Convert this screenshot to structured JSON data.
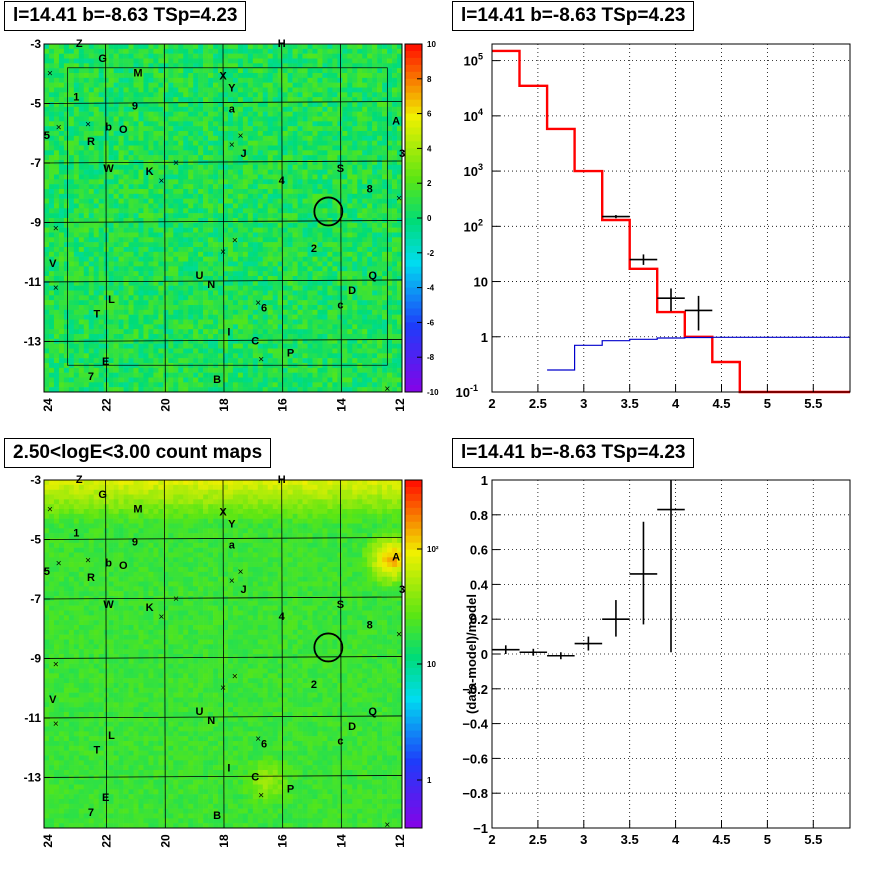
{
  "panels": {
    "map_top_title": "l=14.41 b=-8.63 TSp=4.23",
    "spectrum_title": "l=14.41 b=-8.63 TSp=4.23",
    "map_bottom_title": "2.50<logE<3.00 count maps",
    "residual_title": "l=14.41 b=-8.63 TSp=4.23"
  },
  "maps": {
    "x_ticks": [
      "24",
      "22",
      "20",
      "18",
      "16",
      "14",
      "12"
    ],
    "y_ticks": [
      "-3",
      "-5",
      "-7",
      "-9",
      "-11",
      "-13"
    ],
    "top_colorbar_ticks": [
      "10",
      "8",
      "6",
      "4",
      "2",
      "0",
      "-2",
      "-4",
      "-6",
      "-8",
      "-10"
    ],
    "bottom_colorbar_ticks": [
      "10²",
      "10",
      "1"
    ],
    "source_labels": [
      {
        "t": "Z",
        "l": 22.9,
        "b": -3.1
      },
      {
        "t": "H",
        "l": 16.0,
        "b": -3.1
      },
      {
        "t": "G",
        "l": 22.1,
        "b": -3.6
      },
      {
        "t": "M",
        "l": 20.9,
        "b": -4.1
      },
      {
        "t": "X",
        "l": 18.0,
        "b": -4.2
      },
      {
        "t": "Y",
        "l": 17.7,
        "b": -4.6
      },
      {
        "t": "1",
        "l": 23.0,
        "b": -4.9
      },
      {
        "t": "9",
        "l": 21.0,
        "b": -5.2
      },
      {
        "t": "a",
        "l": 17.7,
        "b": -5.3
      },
      {
        "t": "A",
        "l": 12.1,
        "b": -5.7
      },
      {
        "t": "b",
        "l": 21.9,
        "b": -5.9
      },
      {
        "t": "O",
        "l": 21.4,
        "b": -6.0
      },
      {
        "t": "5",
        "l": 24.0,
        "b": -6.2
      },
      {
        "t": "R",
        "l": 22.5,
        "b": -6.4
      },
      {
        "t": "J",
        "l": 17.3,
        "b": -6.8
      },
      {
        "t": "3",
        "l": 11.9,
        "b": -6.8
      },
      {
        "t": "W",
        "l": 21.9,
        "b": -7.3
      },
      {
        "t": "K",
        "l": 20.5,
        "b": -7.4
      },
      {
        "t": "S",
        "l": 14.0,
        "b": -7.3
      },
      {
        "t": "4",
        "l": 16.0,
        "b": -7.7
      },
      {
        "t": "8",
        "l": 13.0,
        "b": -8.0
      },
      {
        "t": "2",
        "l": 14.9,
        "b": -10.0
      },
      {
        "t": "V",
        "l": 23.8,
        "b": -10.5
      },
      {
        "t": "U",
        "l": 18.8,
        "b": -10.9
      },
      {
        "t": "Q",
        "l": 12.9,
        "b": -10.9
      },
      {
        "t": "N",
        "l": 18.4,
        "b": -11.2
      },
      {
        "t": "D",
        "l": 13.6,
        "b": -11.4
      },
      {
        "t": "L",
        "l": 21.8,
        "b": -11.7
      },
      {
        "t": "c",
        "l": 14.0,
        "b": -11.9
      },
      {
        "t": "6",
        "l": 16.6,
        "b": -12.0
      },
      {
        "t": "T",
        "l": 22.3,
        "b": -12.2
      },
      {
        "t": "I",
        "l": 17.8,
        "b": -12.8
      },
      {
        "t": "C",
        "l": 16.9,
        "b": -13.1
      },
      {
        "t": "P",
        "l": 15.7,
        "b": -13.5
      },
      {
        "t": "E",
        "l": 22.0,
        "b": -13.8
      },
      {
        "t": "7",
        "l": 22.5,
        "b": -14.3
      },
      {
        "t": "B",
        "l": 18.2,
        "b": -14.4
      }
    ]
  },
  "chart_data": [
    {
      "type": "heatmap",
      "title": "l=14.41 b=-8.63 TSp=4.23",
      "xlabel": "",
      "ylabel": "",
      "xlim": [
        24.1,
        11.9
      ],
      "ylim": [
        -14.7,
        -3.0
      ],
      "zlim": [
        -10,
        10
      ],
      "colorbar_ticks": [
        10,
        8,
        6,
        4,
        2,
        0,
        -2,
        -4,
        -6,
        -8,
        -10
      ],
      "marked_position": {
        "l": 14.41,
        "b": -8.63
      },
      "grid": true
    },
    {
      "type": "line",
      "title": "l=14.41 b=-8.63 TSp=4.23",
      "xlabel": "",
      "ylabel": "",
      "xlim": [
        2,
        5.9
      ],
      "ylim": [
        0.1,
        200000
      ],
      "yscale": "log",
      "grid": true,
      "x_ticks": [
        "2",
        "2.5",
        "3",
        "3.5",
        "4",
        "4.5",
        "5",
        "5.5"
      ],
      "y_ticks": [
        "10^{-1}",
        "1",
        "10",
        "10^{2}",
        "10^{3}",
        "10^{4}",
        "10^{5}"
      ],
      "series": [
        {
          "color": "#ff0000",
          "style": "step",
          "edges": [
            2.0,
            2.3,
            2.6,
            2.9,
            3.2,
            3.5,
            3.8,
            4.1,
            4.4,
            4.7,
            5.9
          ],
          "values": [
            150000,
            35000,
            5800,
            1000,
            130,
            17,
            2.8,
            1.0,
            0.35,
            0.1
          ]
        },
        {
          "color": "#0000cc",
          "style": "step",
          "edges": [
            2.6,
            2.9,
            3.2,
            3.5,
            3.8,
            4.1,
            4.4,
            4.7,
            5.0,
            5.9
          ],
          "values": [
            0.25,
            0.7,
            0.85,
            0.9,
            0.95,
            0.97,
            0.98,
            0.98,
            0.98
          ]
        },
        {
          "color": "#000000",
          "style": "points",
          "points": [
            {
              "x": 3.35,
              "y": 150,
              "xerr": 0.15,
              "ylo": 140,
              "yhi": 160
            },
            {
              "x": 3.65,
              "y": 25,
              "xerr": 0.15,
              "ylo": 20,
              "yhi": 31
            },
            {
              "x": 3.95,
              "y": 5,
              "xerr": 0.15,
              "ylo": 2.9,
              "yhi": 7.5
            },
            {
              "x": 4.25,
              "y": 3,
              "xerr": 0.15,
              "ylo": 1.3,
              "yhi": 5.5
            }
          ]
        }
      ]
    },
    {
      "type": "heatmap",
      "title": "2.50<logE<3.00 count maps",
      "xlabel": "",
      "ylabel": "",
      "xlim": [
        24.1,
        11.9
      ],
      "ylim": [
        -14.7,
        -3.0
      ],
      "zscale": "log",
      "colorbar_ticks": [
        "10²",
        "10",
        "1"
      ],
      "marked_position": {
        "l": 14.41,
        "b": -8.63
      },
      "grid": true
    },
    {
      "type": "scatter",
      "title": "l=14.41 b=-8.63 TSp=4.23",
      "xlabel": "",
      "ylabel": "(data-model)/model",
      "xlim": [
        2,
        5.9
      ],
      "ylim": [
        -1,
        1
      ],
      "grid": true,
      "x_ticks": [
        "2",
        "2.5",
        "3",
        "3.5",
        "4",
        "4.5",
        "5",
        "5.5"
      ],
      "y_ticks": [
        "−1",
        "−0.8",
        "−0.6",
        "−0.4",
        "−0.2",
        "0",
        "0.2",
        "0.4",
        "0.6",
        "0.8",
        "1"
      ],
      "points": [
        {
          "x": 2.15,
          "y": 0.025,
          "xerr": 0.15,
          "ylo": 0.0,
          "yhi": 0.05
        },
        {
          "x": 2.45,
          "y": 0.01,
          "xerr": 0.15,
          "ylo": -0.01,
          "yhi": 0.03
        },
        {
          "x": 2.75,
          "y": -0.01,
          "xerr": 0.15,
          "ylo": -0.03,
          "yhi": 0.01
        },
        {
          "x": 3.05,
          "y": 0.06,
          "xerr": 0.15,
          "ylo": 0.02,
          "yhi": 0.1
        },
        {
          "x": 3.35,
          "y": 0.2,
          "xerr": 0.15,
          "ylo": 0.1,
          "yhi": 0.31
        },
        {
          "x": 3.65,
          "y": 0.46,
          "xerr": 0.15,
          "ylo": 0.17,
          "yhi": 0.76
        },
        {
          "x": 3.95,
          "y": 0.83,
          "xerr": 0.15,
          "ylo": 0.01,
          "yhi": 1.0
        }
      ]
    }
  ]
}
